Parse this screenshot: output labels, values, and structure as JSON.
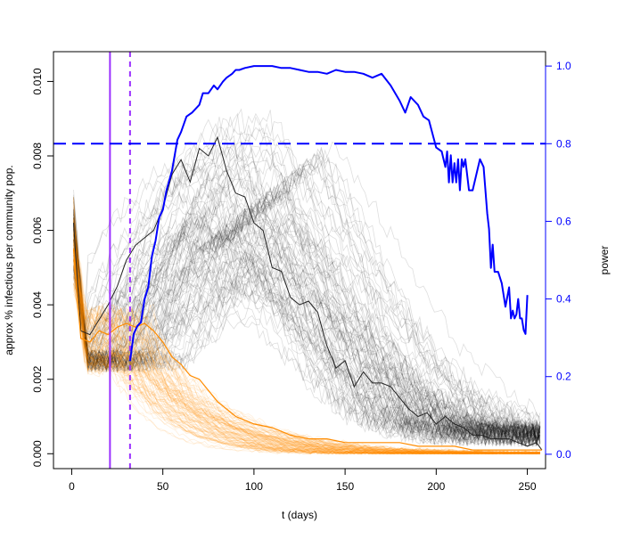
{
  "colors": {
    "left_axis": "#000000",
    "right_axis": "#0000ff",
    "power_line": "#0000ff",
    "power_threshold": "#0000ff",
    "intervention_lines": "#9b30ff",
    "sim_grey": "#000000",
    "sim_orange": "#ff8c00"
  },
  "chart_data": {
    "type": "line",
    "title": "",
    "xlabel": "t (days)",
    "ylabel": "approx % infectious per community pop.",
    "y2label": "power",
    "xlim": [
      -10,
      260
    ],
    "ylim": [
      -0.0004,
      0.0108
    ],
    "y2lim": [
      -0.037,
      1.037
    ],
    "xticks": [
      0,
      50,
      100,
      150,
      200,
      250
    ],
    "xtick_labels": [
      "0",
      "50",
      "100",
      "150",
      "200",
      "250"
    ],
    "yticks": [
      0,
      0.002,
      0.004,
      0.006,
      0.008,
      0.01
    ],
    "ytick_labels": [
      "0.000",
      "0.002",
      "0.004",
      "0.006",
      "0.008",
      "0.010"
    ],
    "y2ticks": [
      0,
      0.2,
      0.4,
      0.6,
      0.8,
      1.0
    ],
    "y2tick_labels": [
      "0.0",
      "0.2",
      "0.4",
      "0.6",
      "0.8",
      "1.0"
    ],
    "grid": false,
    "vertical_lines": [
      {
        "x": 21,
        "style": "solid"
      },
      {
        "x": 32,
        "style": "dashed"
      }
    ],
    "horizontal_line": {
      "y2": 0.8,
      "style": "dashed"
    },
    "highlight_grey": {
      "x": [
        1,
        5,
        10,
        15,
        20,
        25,
        30,
        35,
        40,
        45,
        50,
        55,
        60,
        65,
        70,
        75,
        80,
        85,
        90,
        95,
        100,
        105,
        110,
        115,
        120,
        125,
        130,
        135,
        140,
        145,
        150,
        155,
        160,
        165,
        170,
        175,
        180,
        185,
        190,
        195,
        200,
        205,
        210,
        215,
        220,
        225,
        230,
        235,
        240,
        245,
        250,
        255,
        258
      ],
      "y": [
        0.0062,
        0.0033,
        0.0032,
        0.0036,
        0.004,
        0.0045,
        0.0052,
        0.0056,
        0.0058,
        0.006,
        0.0066,
        0.0075,
        0.0079,
        0.0073,
        0.0082,
        0.008,
        0.0085,
        0.0076,
        0.007,
        0.0069,
        0.0062,
        0.006,
        0.005,
        0.0049,
        0.0042,
        0.004,
        0.0041,
        0.0038,
        0.0029,
        0.0023,
        0.0025,
        0.0018,
        0.0022,
        0.0019,
        0.0019,
        0.0018,
        0.0015,
        0.0012,
        0.001,
        0.0011,
        0.0008,
        0.001,
        0.0008,
        0.0007,
        0.0005,
        0.0005,
        0.0004,
        0.0004,
        0.0004,
        0.0003,
        0.0002,
        0.0003,
        0.0001
      ]
    },
    "highlight_orange": {
      "x": [
        1,
        5,
        10,
        15,
        20,
        25,
        30,
        35,
        40,
        45,
        50,
        55,
        60,
        65,
        70,
        75,
        80,
        85,
        90,
        95,
        100,
        110,
        120,
        130,
        140,
        150,
        160,
        170,
        180,
        190,
        200,
        210,
        220,
        230,
        240,
        250,
        258
      ],
      "y": [
        0.0055,
        0.0031,
        0.003,
        0.0033,
        0.0032,
        0.0034,
        0.0035,
        0.0034,
        0.0035,
        0.0033,
        0.003,
        0.0026,
        0.0024,
        0.0021,
        0.002,
        0.0017,
        0.0014,
        0.0012,
        0.001,
        0.0009,
        0.0008,
        0.0007,
        0.0005,
        0.0004,
        0.0004,
        0.0003,
        0.0003,
        0.0003,
        0.0003,
        0.0002,
        0.0002,
        0.0002,
        0.0001,
        0.0001,
        0.0001,
        0.0001,
        0.0001
      ]
    },
    "power": {
      "x": [
        32,
        34,
        36,
        38,
        40,
        42,
        44,
        46,
        48,
        50,
        52,
        55,
        58,
        60,
        63,
        66,
        70,
        72,
        75,
        78,
        80,
        83,
        85,
        88,
        90,
        92,
        95,
        100,
        105,
        110,
        115,
        120,
        125,
        130,
        135,
        140,
        145,
        150,
        155,
        160,
        165,
        170,
        175,
        180,
        183,
        186,
        190,
        193,
        196,
        200,
        203,
        205,
        206,
        207,
        208,
        209,
        210,
        211,
        212,
        213,
        214,
        215,
        216,
        218,
        220,
        222,
        224,
        226,
        228,
        229,
        230,
        231,
        232,
        234,
        236,
        238,
        240,
        241,
        242,
        243,
        244,
        245,
        246,
        247,
        248,
        249,
        250
      ],
      "y": [
        0.24,
        0.31,
        0.33,
        0.34,
        0.4,
        0.43,
        0.51,
        0.55,
        0.61,
        0.63,
        0.68,
        0.73,
        0.81,
        0.83,
        0.87,
        0.88,
        0.9,
        0.93,
        0.93,
        0.95,
        0.94,
        0.96,
        0.97,
        0.98,
        0.99,
        0.99,
        0.995,
        1.0,
        1.0,
        1.0,
        0.995,
        0.995,
        0.99,
        0.985,
        0.985,
        0.98,
        0.99,
        0.985,
        0.985,
        0.98,
        0.97,
        0.98,
        0.95,
        0.91,
        0.88,
        0.92,
        0.9,
        0.87,
        0.86,
        0.79,
        0.78,
        0.74,
        0.78,
        0.7,
        0.77,
        0.7,
        0.75,
        0.7,
        0.76,
        0.68,
        0.76,
        0.74,
        0.76,
        0.68,
        0.68,
        0.72,
        0.76,
        0.74,
        0.62,
        0.58,
        0.48,
        0.54,
        0.47,
        0.47,
        0.44,
        0.38,
        0.43,
        0.35,
        0.37,
        0.35,
        0.36,
        0.4,
        0.35,
        0.35,
        0.32,
        0.31,
        0.41
      ]
    },
    "grey_ensemble": {
      "count": 100,
      "description_free": true
    },
    "orange_ensemble": {
      "count": 100
    }
  }
}
